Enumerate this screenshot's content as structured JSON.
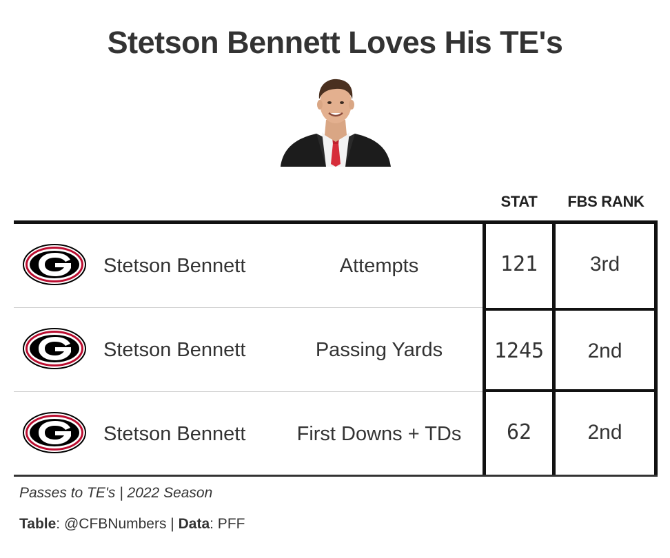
{
  "title": "Stetson Bennett Loves His TE's",
  "headshot_icon": "player-headshot",
  "columns": {
    "stat": "STAT",
    "rank": "FBS RANK"
  },
  "rows": [
    {
      "team_logo": "georgia-g-logo",
      "player": "Stetson Bennett",
      "metric": "Attempts",
      "stat": "121",
      "rank": "3rd"
    },
    {
      "team_logo": "georgia-g-logo",
      "player": "Stetson Bennett",
      "metric": "Passing Yards",
      "stat": "1245",
      "rank": "2nd"
    },
    {
      "team_logo": "georgia-g-logo",
      "player": "Stetson Bennett",
      "metric": "First Downs + TDs",
      "stat": "62",
      "rank": "2nd"
    }
  ],
  "subtitle": "Passes to TE's | 2022 Season",
  "source": {
    "table_label": "Table",
    "table_value": ": @CFBNumbers | ",
    "data_label": "Data",
    "data_value": ": PFF"
  },
  "colors": {
    "text": "#333333",
    "rule": "#111111",
    "georgia_red": "#BA0C2F"
  }
}
